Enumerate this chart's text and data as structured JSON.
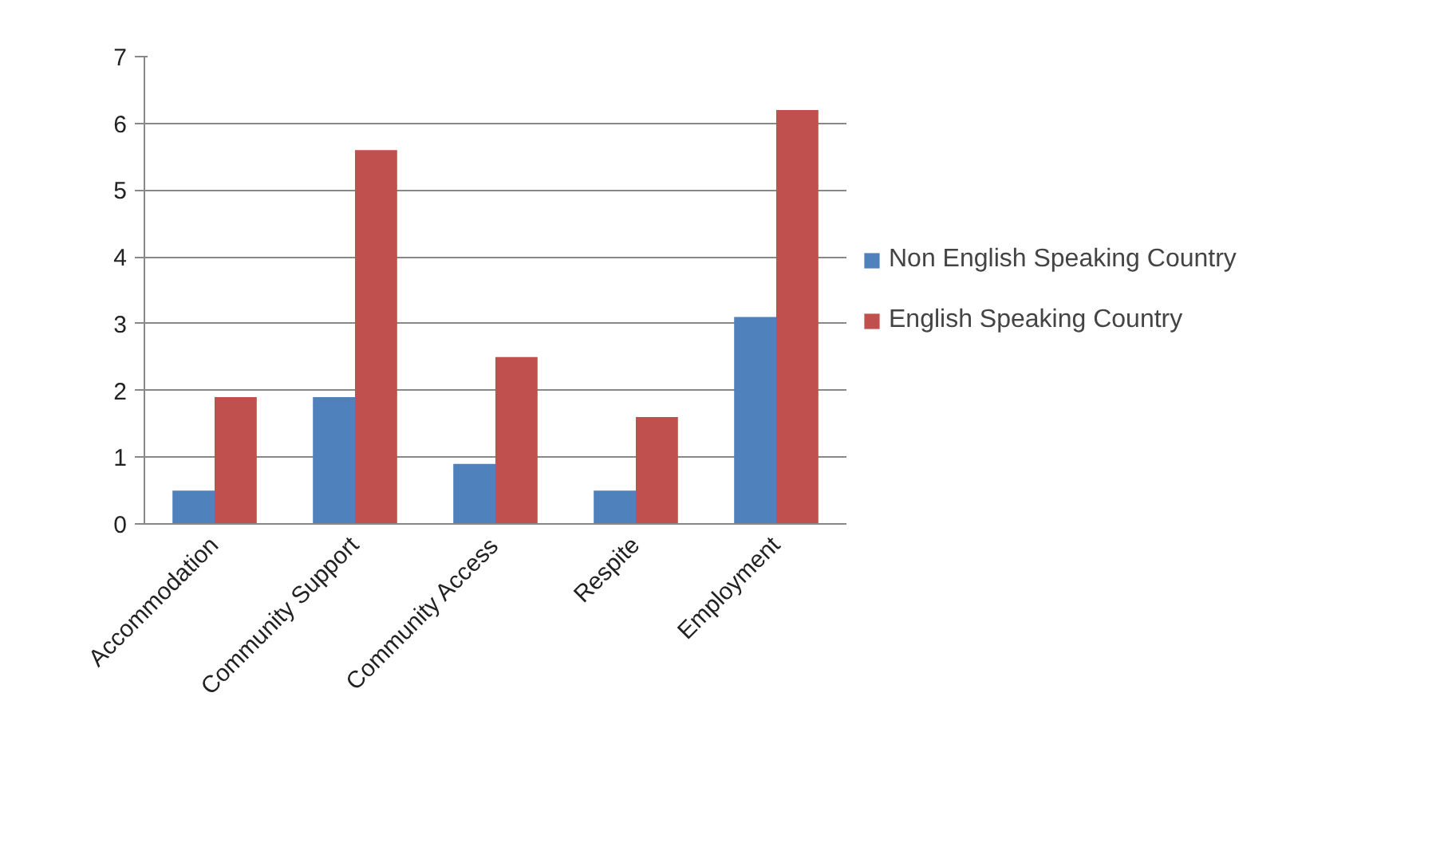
{
  "chart_data": {
    "type": "bar",
    "categories": [
      "Accommodation",
      "Community Support",
      "Community Access",
      "Respite",
      "Employment"
    ],
    "series": [
      {
        "name": "Non English Speaking Country",
        "color": "#4f81bd",
        "values": [
          0.5,
          1.9,
          0.9,
          0.5,
          3.1
        ]
      },
      {
        "name": "English Speaking Country",
        "color": "#c0504d",
        "values": [
          1.9,
          5.6,
          2.5,
          1.6,
          6.2
        ]
      }
    ],
    "ylim": [
      0,
      7
    ],
    "yticks": [
      0,
      1,
      2,
      3,
      4,
      5,
      6,
      7
    ],
    "grid": "y",
    "legend": "right"
  }
}
